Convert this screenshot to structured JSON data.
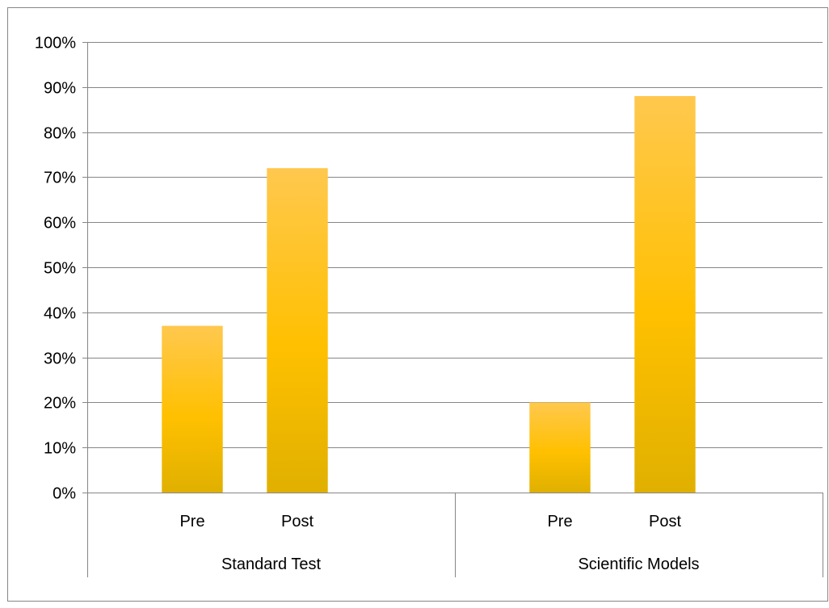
{
  "chart_data": {
    "type": "bar",
    "title": "",
    "xlabel": "",
    "ylabel": "",
    "ylim": [
      0,
      100
    ],
    "ytick_step": 10,
    "ytick_suffix": "%",
    "grid": true,
    "legend": "none",
    "groups": [
      {
        "label": "Standard Test",
        "categories": [
          "Pre",
          "Post"
        ],
        "values": [
          37,
          72
        ]
      },
      {
        "label": "Scientific Models",
        "categories": [
          "Pre",
          "Post"
        ],
        "values": [
          20,
          88
        ]
      }
    ],
    "colors": {
      "bar_top": "#FFC84E",
      "bar_mid": "#FFC000",
      "bar_bottom": "#E0B000",
      "grid": "#868686",
      "frame": "#868686"
    }
  }
}
